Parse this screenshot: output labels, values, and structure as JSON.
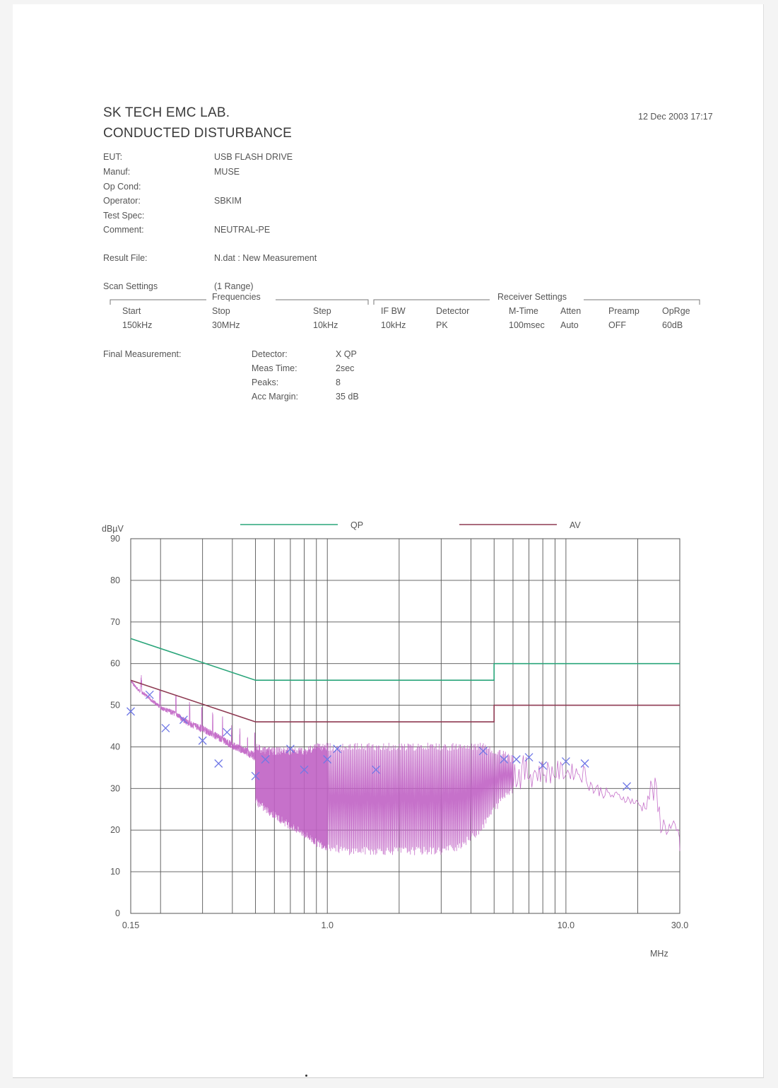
{
  "header": {
    "lab": "SK TECH EMC LAB.",
    "title": "CONDUCTED DISTURBANCE",
    "datetime": "12 Dec 2003   17:17"
  },
  "info": [
    {
      "label": "EUT:",
      "value": "USB FLASH DRIVE"
    },
    {
      "label": "Manuf:",
      "value": "MUSE"
    },
    {
      "label": "Op Cond:",
      "value": ""
    },
    {
      "label": "Operator:",
      "value": "SBKIM"
    },
    {
      "label": "Test Spec:",
      "value": ""
    },
    {
      "label": "Comment:",
      "value": "NEUTRAL-PE"
    }
  ],
  "result_file": {
    "label": "Result File:",
    "value": "N.dat : New Measurement"
  },
  "scan": {
    "label": "Scan Settings",
    "range": "(1  Range)",
    "frequencies_title": "Frequencies",
    "receiver_title": "Receiver Settings",
    "headers": [
      "Start",
      "Stop",
      "Step",
      "IF BW",
      "Detector",
      "M-Time",
      "Atten",
      "Preamp",
      "OpRge"
    ],
    "values": [
      "150kHz",
      "30MHz",
      "10kHz",
      "10kHz",
      "PK",
      "100msec",
      "Auto",
      "OFF",
      "60dB"
    ]
  },
  "final": {
    "label": "Final Measurement:",
    "rows": [
      {
        "label": "Detector:",
        "value": "X QP"
      },
      {
        "label": "Meas Time:",
        "value": "2sec"
      },
      {
        "label": "Peaks:",
        "value": "8"
      },
      {
        "label": "Acc Margin:",
        "value": "35 dB"
      }
    ]
  },
  "chart_data": {
    "type": "line",
    "xscale": "log",
    "xlim": [
      0.15,
      30.0
    ],
    "ylim": [
      0,
      90
    ],
    "ylabel": "dBµV",
    "xlabel": "MHz",
    "yticks": [
      0,
      10,
      20,
      30,
      40,
      50,
      60,
      70,
      80,
      90
    ],
    "xtick_labels": [
      {
        "x": 0.15,
        "label": "0.15"
      },
      {
        "x": 1.0,
        "label": "1.0"
      },
      {
        "x": 10.0,
        "label": "10.0"
      },
      {
        "x": 30.0,
        "label": "30.0"
      }
    ],
    "grid": true,
    "legend_position": "top",
    "colors": {
      "qp": "#2aa57a",
      "av": "#8e3a52",
      "trace": "#c062c4",
      "marker": "#6f78e6",
      "grid": "#555555"
    },
    "series": [
      {
        "name": "QP",
        "type": "limit",
        "x": [
          0.15,
          0.5,
          5.0,
          5.0,
          30.0
        ],
        "y": [
          66,
          56,
          56,
          60,
          60
        ]
      },
      {
        "name": "AV",
        "type": "limit",
        "x": [
          0.15,
          0.5,
          5.0,
          5.0,
          30.0
        ],
        "y": [
          56,
          46,
          46,
          50,
          50
        ]
      },
      {
        "type": "trace",
        "envelope_x": [
          0.15,
          0.16,
          0.18,
          0.2,
          0.23,
          0.26,
          0.3,
          0.35,
          0.4,
          0.45,
          0.5,
          0.55,
          0.62,
          0.7,
          0.8,
          0.9,
          1.0,
          1.2,
          1.5,
          2.0,
          2.5,
          3.0,
          3.5,
          4.0,
          4.5,
          5.0,
          5.5,
          6.0,
          7.0,
          8.0,
          9.0,
          10.0,
          11.0,
          12.0,
          13.0,
          14.0,
          15.0,
          17.0,
          19.0,
          21.0,
          22.0,
          23.0,
          24.0,
          25.0,
          27.0,
          29.0,
          30.0
        ],
        "envelope_hi": [
          57,
          55,
          53,
          51,
          50,
          48,
          47,
          45,
          43,
          42,
          41,
          40,
          40,
          40,
          40,
          41,
          41,
          41,
          41,
          41,
          41,
          41,
          41,
          41,
          41,
          40,
          39,
          38,
          38,
          37,
          37,
          36,
          36,
          36,
          32,
          31,
          30,
          29,
          28,
          27,
          30,
          34,
          32,
          24,
          23,
          22,
          21
        ],
        "envelope_lo": [
          52,
          50,
          47,
          44,
          41,
          38,
          35,
          33,
          31,
          29,
          26,
          24,
          22,
          20,
          18,
          16,
          15,
          14,
          14,
          14,
          14,
          14,
          15,
          17,
          20,
          24,
          27,
          29,
          30,
          31,
          31,
          32,
          32,
          31,
          28,
          28,
          27,
          27,
          26,
          24,
          25,
          27,
          22,
          19,
          18,
          16,
          15
        ]
      },
      {
        "name": "QP Final",
        "type": "markers",
        "x": [
          0.15,
          0.18,
          0.21,
          0.25,
          0.3,
          0.35,
          0.38,
          0.5,
          0.55,
          0.7,
          0.8,
          1.0,
          1.1,
          1.6,
          4.5,
          5.5,
          6.2,
          7.0,
          8.0,
          10.0,
          12.0,
          18.0
        ],
        "y": [
          48.5,
          52.5,
          44.5,
          46.5,
          41.5,
          36,
          43.5,
          33,
          37,
          39.5,
          34.5,
          37,
          39.5,
          34.5,
          39,
          37,
          37,
          37.5,
          35.5,
          36.5,
          36,
          30.5
        ]
      }
    ]
  }
}
